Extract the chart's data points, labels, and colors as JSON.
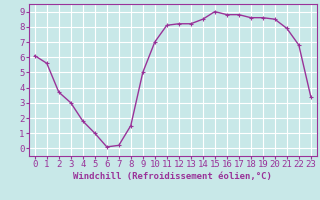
{
  "x": [
    0,
    1,
    2,
    3,
    4,
    5,
    6,
    7,
    8,
    9,
    10,
    11,
    12,
    13,
    14,
    15,
    16,
    17,
    18,
    19,
    20,
    21,
    22,
    23
  ],
  "y": [
    6.1,
    5.6,
    3.7,
    3.0,
    1.8,
    1.0,
    0.1,
    0.2,
    1.5,
    5.0,
    7.0,
    8.1,
    8.2,
    8.2,
    8.5,
    9.0,
    8.8,
    8.8,
    8.6,
    8.6,
    8.5,
    7.9,
    6.8,
    3.4
  ],
  "line_color": "#993399",
  "marker": "+",
  "marker_size": 3,
  "bg_color": "#c8e8e8",
  "grid_color": "#ffffff",
  "xlabel": "Windchill (Refroidissement éolien,°C)",
  "xlim": [
    -0.5,
    23.5
  ],
  "ylim": [
    -0.5,
    9.5
  ],
  "xticks": [
    0,
    1,
    2,
    3,
    4,
    5,
    6,
    7,
    8,
    9,
    10,
    11,
    12,
    13,
    14,
    15,
    16,
    17,
    18,
    19,
    20,
    21,
    22,
    23
  ],
  "yticks": [
    0,
    1,
    2,
    3,
    4,
    5,
    6,
    7,
    8,
    9
  ],
  "xlabel_fontsize": 6.5,
  "tick_fontsize": 6.5,
  "line_width": 1.0
}
